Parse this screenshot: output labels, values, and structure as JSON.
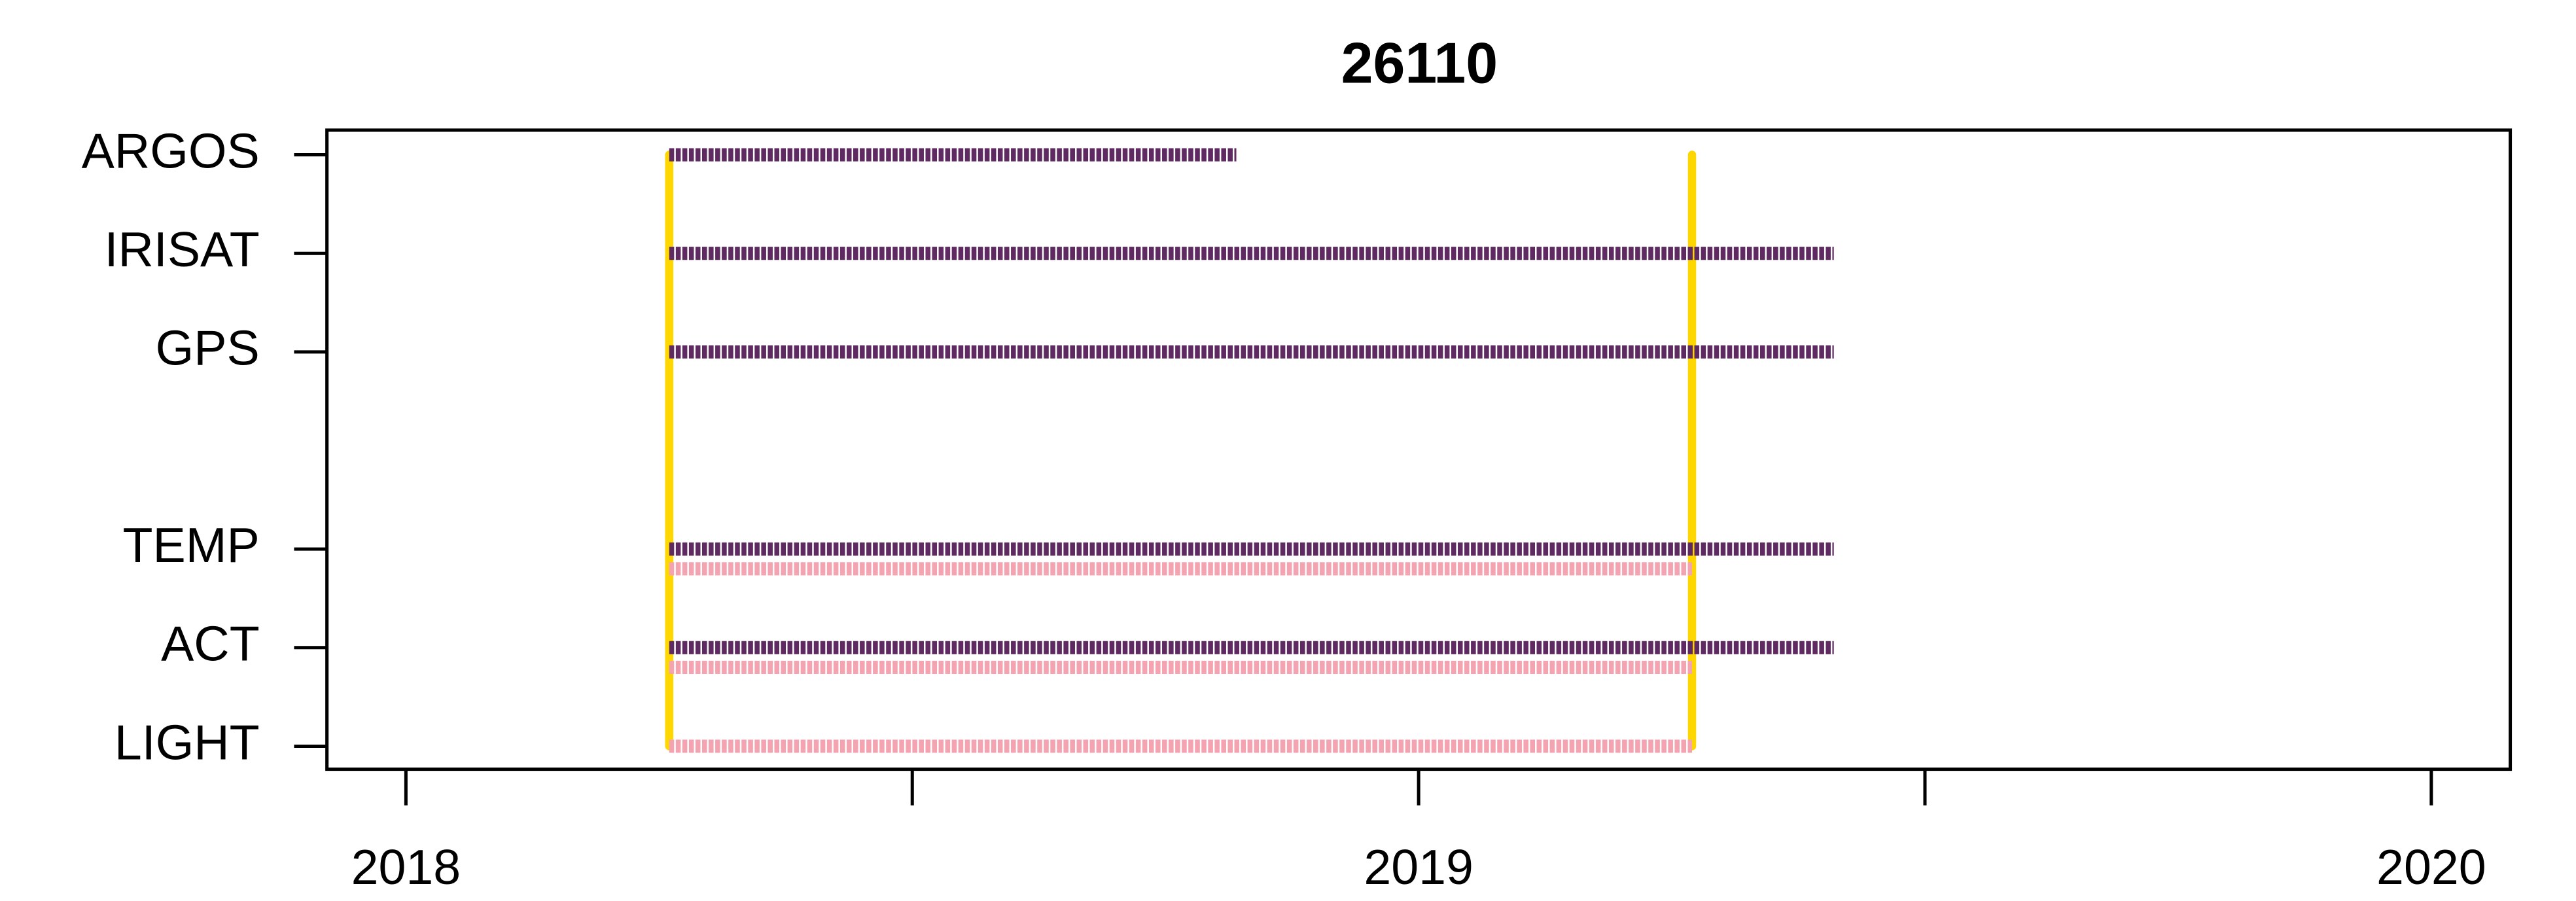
{
  "chart_data": {
    "type": "timeline",
    "title": "26110",
    "categories": [
      "ARGOS",
      "IRISAT",
      "GPS",
      null,
      "TEMP",
      "ACT",
      "LIGHT"
    ],
    "series": [
      {
        "color": "#5e2a61",
        "start": [
          2018.26,
          2018.26,
          2018.26,
          null,
          2018.26,
          2018.26,
          null
        ],
        "end": [
          2018.82,
          2019.41,
          2019.41,
          null,
          2019.41,
          2019.41,
          null
        ]
      },
      {
        "color": "#f4a3b0",
        "start": [
          null,
          null,
          null,
          null,
          2018.26,
          2018.26,
          2018.26
        ],
        "end": [
          null,
          null,
          null,
          null,
          2019.27,
          2019.27,
          2019.27
        ]
      }
    ],
    "vlines": [
      2018.26,
      2019.27
    ],
    "vline_color": "#ffd700",
    "xlim": [
      2017.922,
      2020.078
    ],
    "xticks": [
      2018,
      {
        "value": 2018.5,
        "label": null
      },
      2019,
      {
        "value": 2019.5,
        "label": null
      },
      2020
    ]
  }
}
